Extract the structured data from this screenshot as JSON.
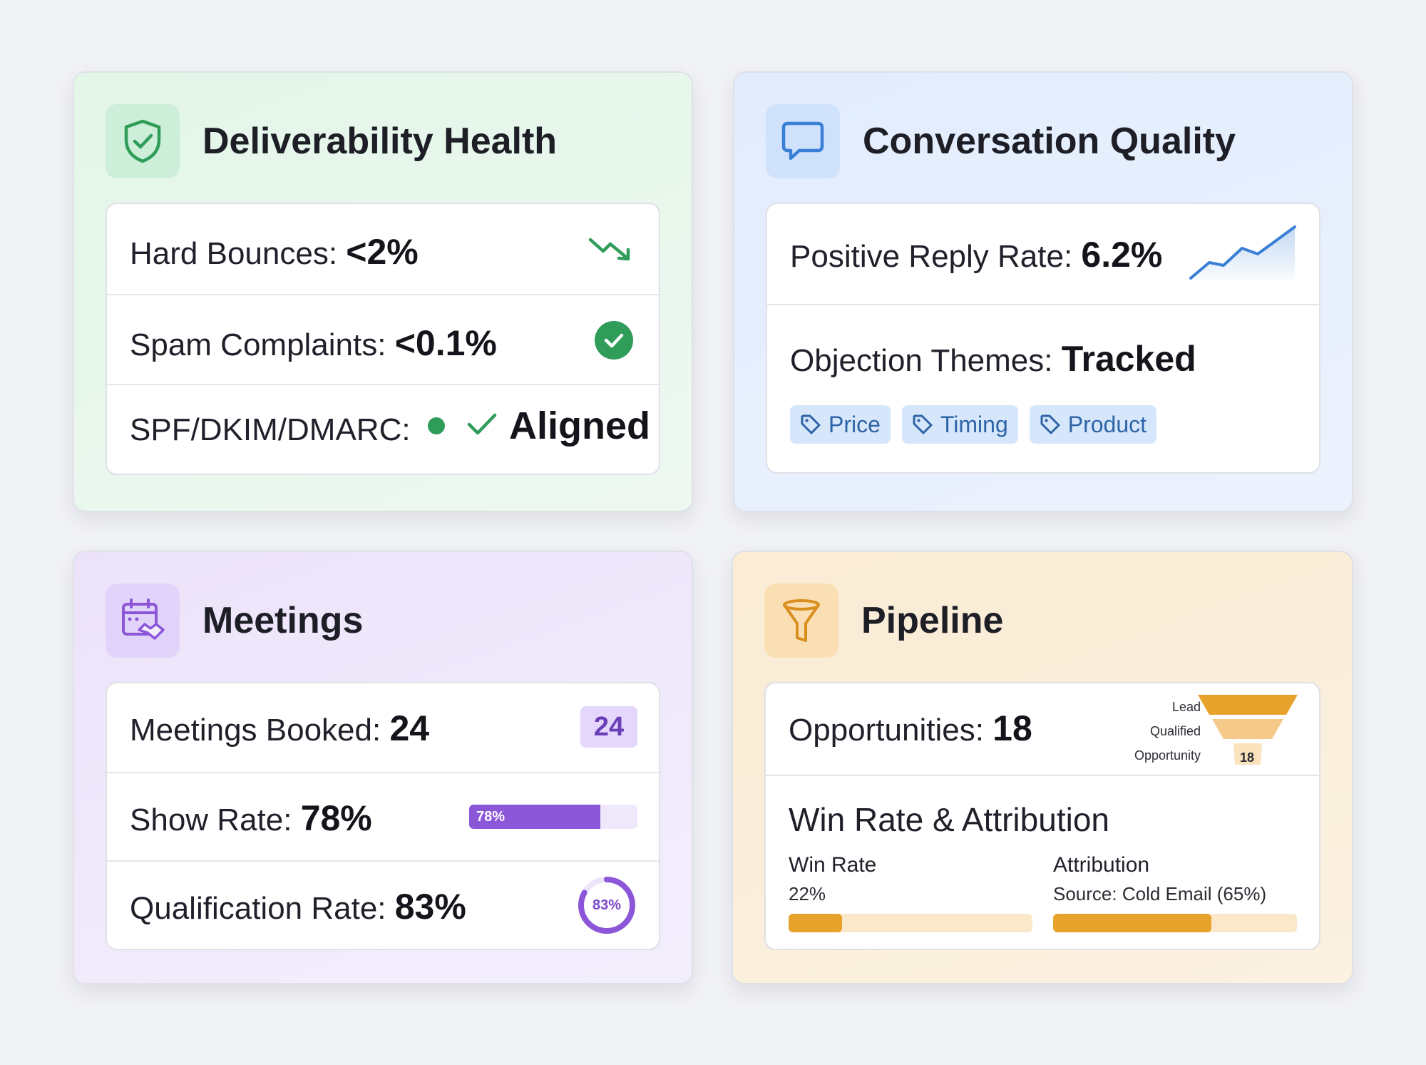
{
  "colors": {
    "green": "#2f9c5a",
    "blue": "#3a7fd6",
    "purple": "#8c56d8",
    "orange": "#e7a22c"
  },
  "deliverability": {
    "title": "Deliverability Health",
    "icon": "shield-check-icon",
    "hard_bounces": {
      "label": "Hard Bounces: ",
      "value": "<2%",
      "icon": "trend-down-icon"
    },
    "spam_complaints": {
      "label": "Spam Complaints: ",
      "value": "<0.1%",
      "icon": "check-circle-icon"
    },
    "auth": {
      "label": "SPF/DKIM/DMARC: ",
      "value": "Aligned",
      "icon": "check-icon"
    }
  },
  "conversation": {
    "title": "Conversation Quality",
    "icon": "chat-bubble-icon",
    "positive_reply": {
      "label": "Positive Reply Rate: ",
      "value": "6.2%",
      "icon": "sparkline-up-icon"
    },
    "objections": {
      "label": "Objection Themes: ",
      "value": "Tracked"
    },
    "tags": [
      "Price",
      "Timing",
      "Product"
    ]
  },
  "meetings": {
    "title": "Meetings",
    "icon": "calendar-handshake-icon",
    "booked": {
      "label": "Meetings Booked: ",
      "value": "24",
      "badge": "24"
    },
    "show_rate": {
      "label": "Show Rate: ",
      "value": "78%",
      "bar_label": "78%",
      "fraction": 0.78
    },
    "qualification": {
      "label": "Qualification Rate: ",
      "value": "83%",
      "ring_label": "83%",
      "fraction": 0.83
    }
  },
  "pipeline": {
    "title": "Pipeline",
    "icon": "funnel-icon",
    "opportunities": {
      "label": "Opportunities: ",
      "value": "18"
    },
    "funnel": {
      "stages": [
        "Lead",
        "Qualified",
        "Opportunity"
      ],
      "count": "18"
    },
    "win_attr": {
      "title": "Win Rate & Attribution",
      "win_rate": {
        "title": "Win Rate",
        "value": "22%",
        "fraction": 0.22
      },
      "attribution": {
        "title": "Attribution",
        "value": "Source: Cold Email (65%)",
        "fraction": 0.65
      }
    }
  }
}
